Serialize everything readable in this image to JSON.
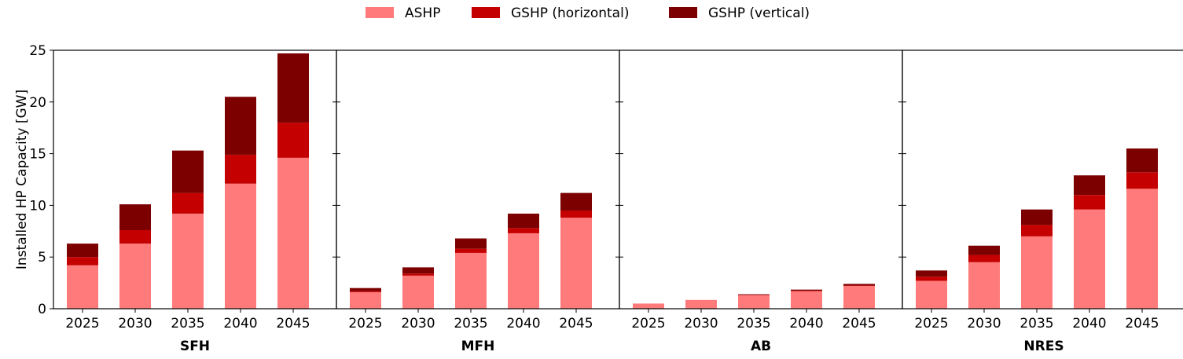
{
  "chart_data": {
    "type": "bar",
    "stacked": true,
    "ylabel": "Installed HP Capacity [GW]",
    "ylim": [
      0,
      25
    ],
    "yticks": [
      "0",
      "5",
      "10",
      "15",
      "20",
      "25"
    ],
    "categories": [
      "2025",
      "2030",
      "2035",
      "2040",
      "2045"
    ],
    "legend": {
      "position": "top-center",
      "entries": [
        {
          "name": "ASHP",
          "color": "#ff7b7b"
        },
        {
          "name": "GSHP (horizontal)",
          "color": "#c40000"
        },
        {
          "name": "GSHP (vertical)",
          "color": "#7c0000"
        }
      ]
    },
    "panels": [
      {
        "title": "SFH",
        "series": [
          {
            "name": "ASHP",
            "values": [
              4.2,
              6.3,
              9.2,
              12.1,
              14.6
            ]
          },
          {
            "name": "GSHP (horizontal)",
            "values": [
              0.8,
              1.3,
              2.0,
              2.8,
              3.4
            ]
          },
          {
            "name": "GSHP (vertical)",
            "values": [
              1.3,
              2.5,
              4.1,
              5.6,
              6.7
            ]
          }
        ]
      },
      {
        "title": "MFH",
        "series": [
          {
            "name": "ASHP",
            "values": [
              1.6,
              3.2,
              5.4,
              7.3,
              8.8
            ]
          },
          {
            "name": "GSHP (horizontal)",
            "values": [
              0.1,
              0.2,
              0.4,
              0.5,
              0.7
            ]
          },
          {
            "name": "GSHP (vertical)",
            "values": [
              0.3,
              0.6,
              1.0,
              1.4,
              1.7
            ]
          }
        ]
      },
      {
        "title": "AB",
        "series": [
          {
            "name": "ASHP",
            "values": [
              0.5,
              0.85,
              1.3,
              1.7,
              2.2
            ]
          },
          {
            "name": "GSHP (horizontal)",
            "values": [
              0.0,
              0.0,
              0.05,
              0.05,
              0.05
            ]
          },
          {
            "name": "GSHP (vertical)",
            "values": [
              0.0,
              0.0,
              0.05,
              0.1,
              0.15
            ]
          }
        ]
      },
      {
        "title": "NRES",
        "series": [
          {
            "name": "ASHP",
            "values": [
              2.7,
              4.5,
              7.0,
              9.6,
              11.6
            ]
          },
          {
            "name": "GSHP (horizontal)",
            "values": [
              0.4,
              0.7,
              1.1,
              1.4,
              1.6
            ]
          },
          {
            "name": "GSHP (vertical)",
            "values": [
              0.6,
              0.9,
              1.5,
              1.9,
              2.3
            ]
          }
        ]
      }
    ]
  }
}
